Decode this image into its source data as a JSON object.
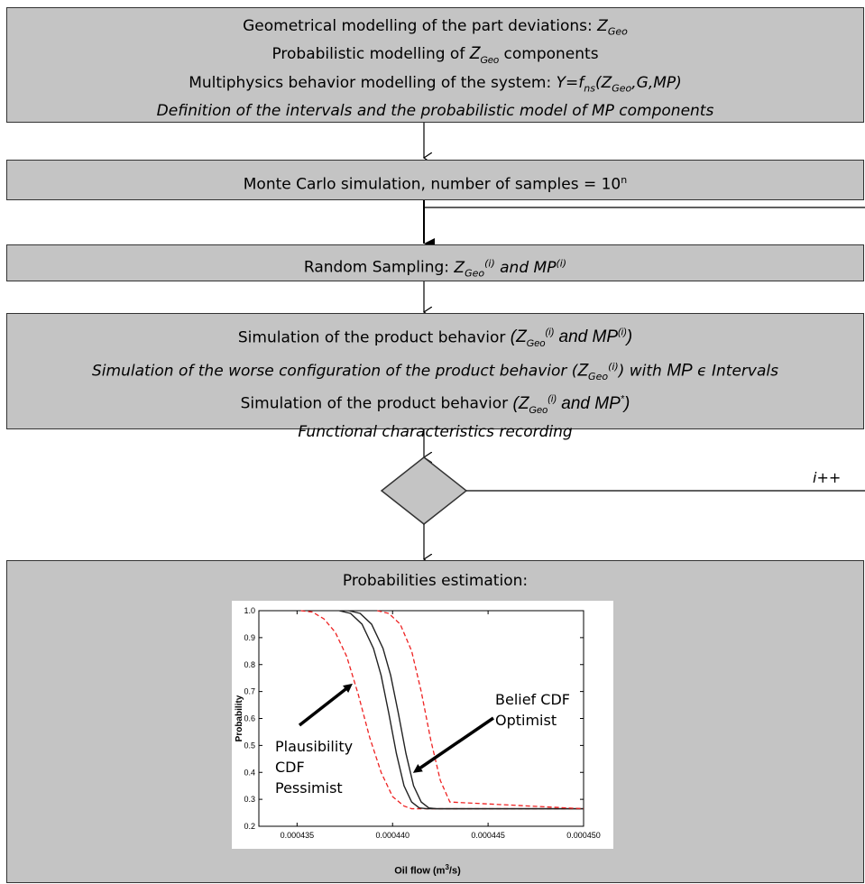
{
  "box1": {
    "line1_prefix": "Geometrical modelling of the part deviations: ",
    "line2_prefix": "Probabilistic modelling of ",
    "line2_suffix": " components",
    "line3_prefix": "Multiphysics behavior modelling of the system: ",
    "line3_formula_pre": "Y=f",
    "line3_formula_sub": "ns",
    "line3_formula_args_pre": "(Z",
    "line3_formula_args_post": ",G,MP)",
    "line4": "Definition of the intervals and the probabilistic model of MP components"
  },
  "zgeo": {
    "Z": "Z",
    "sub": "Geo",
    "i": "(i)"
  },
  "box2": {
    "text": "Monte Carlo simulation, number of samples = 10",
    "sup": "n"
  },
  "box3": {
    "prefix": "Random Sampling: ",
    "and_mp": " and MP"
  },
  "box4": {
    "line1_prefix": "Simulation of the product behavior ",
    "line2_prefix": "Simulation of the worse configuration of the product behavior ",
    "line2_mid": ") with  ",
    "line2_mp": "MP",
    "line2_in": " ϵ Intervals",
    "line3_prefix": "Simulation of the product behavior ",
    "line3_mp_star": "MP",
    "line3_star": "*",
    "line4": "Functional characteristics recording",
    "and_mp": " and MP"
  },
  "loop_label": "i++",
  "box5": {
    "title": "Probabilities estimation:"
  },
  "chart_data": {
    "type": "line",
    "xlabel_pre": "Oil flow (m",
    "xlabel_sup": "3",
    "xlabel_post": "/s)",
    "ylabel": "Probability",
    "xlim": [
      0.000433,
      0.00045
    ],
    "ylim": [
      0.2,
      1.0
    ],
    "x_ticks": [
      "0.000435",
      "0.000440",
      "0.000445",
      "0.000450"
    ],
    "x_tick_values": [
      0.000435,
      0.00044,
      0.000445,
      0.00045
    ],
    "y_ticks": [
      "1.0",
      "0.9",
      "0.8",
      "0.7",
      "0.6",
      "0.5",
      "0.4",
      "0.3",
      "0.2"
    ],
    "y_tick_values": [
      1.0,
      0.9,
      0.8,
      0.7,
      0.6,
      0.5,
      0.4,
      0.3,
      0.2
    ],
    "series": [
      {
        "style": "dashed",
        "color": "#ee2222",
        "x": [
          0.0004352,
          0.0004358,
          0.0004364,
          0.000437,
          0.0004376,
          0.0004382,
          0.0004388,
          0.0004394,
          0.00044,
          0.0004406,
          0.000441,
          0.00045
        ],
        "y": [
          1.0,
          0.995,
          0.97,
          0.92,
          0.83,
          0.69,
          0.53,
          0.4,
          0.31,
          0.275,
          0.265,
          0.265
        ]
      },
      {
        "style": "solid",
        "color": "#222222",
        "x": [
          0.0004372,
          0.0004378,
          0.0004384,
          0.000439,
          0.0004394,
          0.0004398,
          0.0004402,
          0.0004406,
          0.000441,
          0.0004414,
          0.0004418,
          0.00045
        ],
        "y": [
          1.0,
          0.99,
          0.95,
          0.86,
          0.76,
          0.62,
          0.47,
          0.35,
          0.29,
          0.268,
          0.265,
          0.265
        ]
      },
      {
        "style": "solid",
        "color": "#222222",
        "x": [
          0.0004377,
          0.0004383,
          0.0004389,
          0.0004395,
          0.0004399,
          0.0004403,
          0.0004407,
          0.0004411,
          0.0004415,
          0.0004419,
          0.0004423,
          0.00045
        ],
        "y": [
          1.0,
          0.99,
          0.95,
          0.86,
          0.76,
          0.62,
          0.47,
          0.35,
          0.29,
          0.268,
          0.265,
          0.265
        ]
      },
      {
        "style": "dashed",
        "color": "#ee2222",
        "x": [
          0.0004392,
          0.0004398,
          0.0004404,
          0.000441,
          0.0004415,
          0.000442,
          0.0004425,
          0.000443,
          0.00045
        ],
        "y": [
          1.0,
          0.99,
          0.95,
          0.85,
          0.7,
          0.52,
          0.37,
          0.29,
          0.265
        ]
      }
    ],
    "annotations": {
      "belief_line1": "Belief CDF",
      "belief_line2": "Optimist",
      "plaus_line1": "Plausibility",
      "plaus_line2": "CDF",
      "plaus_line3": "Pessimist"
    }
  }
}
